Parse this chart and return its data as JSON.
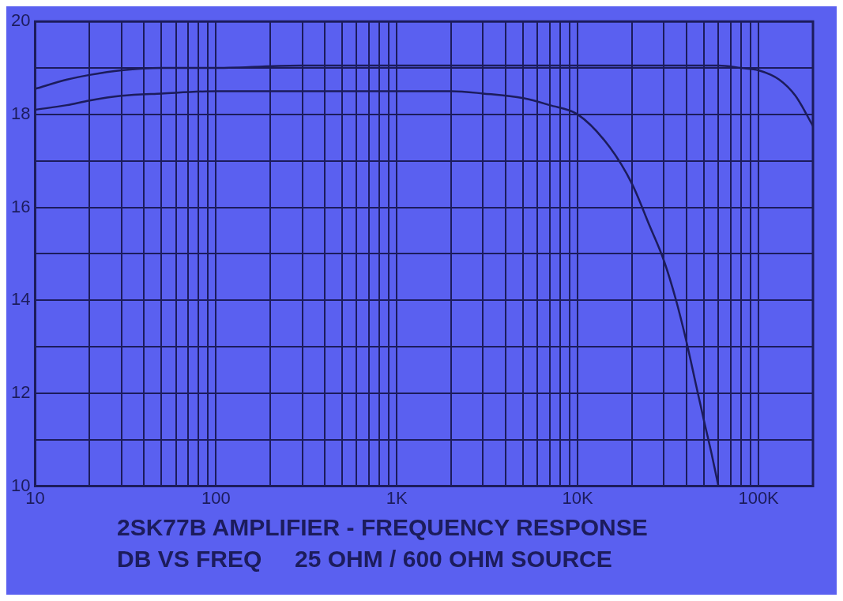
{
  "chart_data": {
    "type": "line",
    "title": "2SK77B AMPLIFIER - FREQUENCY RESPONSE",
    "subtitle": "DB VS FREQ     25 OHM / 600 OHM SOURCE",
    "log": "x",
    "grid": true,
    "marker": "none",
    "line_style": "solid",
    "legend": false,
    "xlim": [
      10,
      200000
    ],
    "ylim": [
      10,
      20
    ],
    "xticks": [
      10,
      {
        "value": 20,
        "label": null
      },
      {
        "value": 30,
        "label": null
      },
      {
        "value": 40,
        "label": null
      },
      {
        "value": 50,
        "label": null
      },
      {
        "value": 60,
        "label": null
      },
      {
        "value": 70,
        "label": null
      },
      {
        "value": 80,
        "label": null
      },
      {
        "value": 90,
        "label": null
      },
      100,
      {
        "value": 200,
        "label": null
      },
      {
        "value": 300,
        "label": null
      },
      {
        "value": 400,
        "label": null
      },
      {
        "value": 500,
        "label": null
      },
      {
        "value": 600,
        "label": null
      },
      {
        "value": 700,
        "label": null
      },
      {
        "value": 800,
        "label": null
      },
      {
        "value": 900,
        "label": null
      },
      {
        "value": 1000,
        "label": "1K"
      },
      {
        "value": 2000,
        "label": null
      },
      {
        "value": 3000,
        "label": null
      },
      {
        "value": 4000,
        "label": null
      },
      {
        "value": 5000,
        "label": null
      },
      {
        "value": 6000,
        "label": null
      },
      {
        "value": 7000,
        "label": null
      },
      {
        "value": 8000,
        "label": null
      },
      {
        "value": 9000,
        "label": null
      },
      {
        "value": 10000,
        "label": "10K"
      },
      {
        "value": 20000,
        "label": null
      },
      {
        "value": 30000,
        "label": null
      },
      {
        "value": 40000,
        "label": null
      },
      {
        "value": 50000,
        "label": null
      },
      {
        "value": 60000,
        "label": null
      },
      {
        "value": 70000,
        "label": null
      },
      {
        "value": 80000,
        "label": null
      },
      {
        "value": 90000,
        "label": null
      },
      {
        "value": 100000,
        "label": "100K"
      }
    ],
    "yticks": [
      10,
      {
        "value": 11,
        "label": null
      },
      12,
      {
        "value": 13,
        "label": null
      },
      14,
      {
        "value": 15,
        "label": null
      },
      16,
      {
        "value": 17,
        "label": null
      },
      18,
      {
        "value": 19,
        "label": null
      },
      20
    ],
    "series": [
      {
        "color": "#1c1c5c",
        "x": [
          10,
          15,
          20,
          30,
          50,
          100,
          300,
          1000,
          3000,
          10000,
          30000,
          60000,
          80000,
          100000,
          130000,
          160000,
          200000
        ],
        "values": [
          18.55,
          18.75,
          18.85,
          18.95,
          19.0,
          19.0,
          19.05,
          19.05,
          19.05,
          19.05,
          19.05,
          19.05,
          19.0,
          18.95,
          18.75,
          18.4,
          17.75
        ]
      },
      {
        "color": "#1c1c5c",
        "x": [
          10,
          15,
          20,
          30,
          50,
          100,
          300,
          1000,
          2000,
          3000,
          5000,
          7000,
          10000,
          15000,
          20000,
          25000,
          30000,
          35000,
          40000,
          45000,
          50000,
          55000,
          60000
        ],
        "values": [
          18.1,
          18.2,
          18.3,
          18.4,
          18.45,
          18.5,
          18.5,
          18.5,
          18.5,
          18.45,
          18.35,
          18.2,
          18.0,
          17.3,
          16.5,
          15.6,
          14.85,
          14.0,
          13.1,
          12.2,
          11.4,
          10.7,
          10.0
        ]
      }
    ]
  }
}
